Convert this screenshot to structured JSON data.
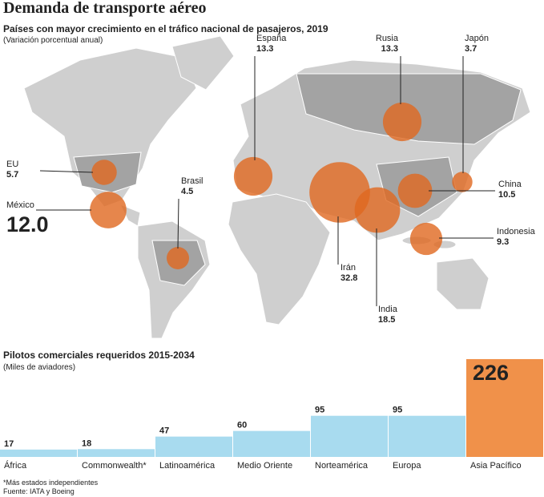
{
  "title": "Demanda de transporte aéreo",
  "chart_data": [
    {
      "type": "bubble-map",
      "title": "Países con mayor crecimiento en el tráfico nacional de pasajeros, 2019",
      "subtitle": "(Variación porcentual anual)",
      "categories": [
        "EU",
        "México",
        "Brasil",
        "España",
        "Irán",
        "India",
        "Rusia",
        "Japón",
        "China",
        "Indonesia"
      ],
      "values": [
        5.7,
        12.0,
        4.5,
        13.3,
        32.8,
        18.5,
        13.3,
        3.7,
        10.5,
        9.3
      ],
      "value_labels": [
        "5.7",
        "12.0",
        "4.5",
        "13.3",
        "32.8",
        "18.5",
        "13.3",
        "3.7",
        "10.5",
        "9.3"
      ],
      "color": "#e0681f"
    },
    {
      "type": "bar",
      "title": "Pilotos comerciales requeridos 2015-2034",
      "subtitle": "(Miles de aviadores)",
      "categories": [
        "África",
        "Commonwealth*",
        "Latinoamérica",
        "Medio Oriente",
        "Norteamérica",
        "Europa",
        "Asia Pacífico"
      ],
      "values": [
        17,
        18,
        47,
        60,
        95,
        95,
        226
      ],
      "colors": [
        "#a8dbef",
        "#a8dbef",
        "#a8dbef",
        "#a8dbef",
        "#a8dbef",
        "#a8dbef",
        "#f0914a"
      ]
    }
  ],
  "footnote": "*Más estados independientes",
  "source": "Fuente: IATA y Boeing"
}
